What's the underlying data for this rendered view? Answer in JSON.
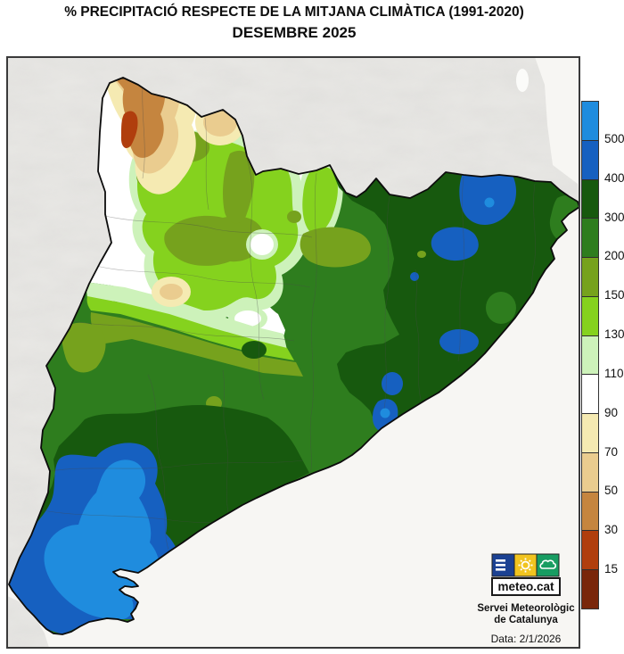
{
  "title": {
    "line1": "% PRECIPITACIÓ RESPECTE DE LA MITJANA CLIMÀTICA (1991-2020)",
    "line2": "DESEMBRE 2025"
  },
  "palette": {
    "gt500": "#1F8CDE",
    "400-500": "#1660C0",
    "300-400": "#17590E",
    "200-300": "#2E7D1E",
    "150-200": "#76A21D",
    "130-150": "#85D21E",
    "110-130": "#CDF2BA",
    "90-110": "#FFFFFF",
    "70-90": "#F5EAB2",
    "50-70": "#EACC8F",
    "30-50": "#C5853F",
    "15-30": "#B03E0D",
    "lt15": "#79260A"
  },
  "legend": {
    "levels": [
      "gt500",
      "400-500",
      "300-400",
      "200-300",
      "150-200",
      "130-150",
      "110-130",
      "90-110",
      "70-90",
      "50-70",
      "30-50",
      "15-30",
      "lt15"
    ],
    "labels": [
      "500",
      "400",
      "300",
      "200",
      "150",
      "130",
      "110",
      "90",
      "70",
      "50",
      "30",
      "15"
    ]
  },
  "map_colors": {
    "sea": "#F7F6F3",
    "outer_land": "#E9E8E5",
    "frame": "#3A3A3A"
  },
  "logo": {
    "brand": "meteo.cat"
  },
  "credits": {
    "line1": "Servei Meteorològic",
    "line2": "de Catalunya",
    "date_label": "Data: 2/1/2026"
  }
}
